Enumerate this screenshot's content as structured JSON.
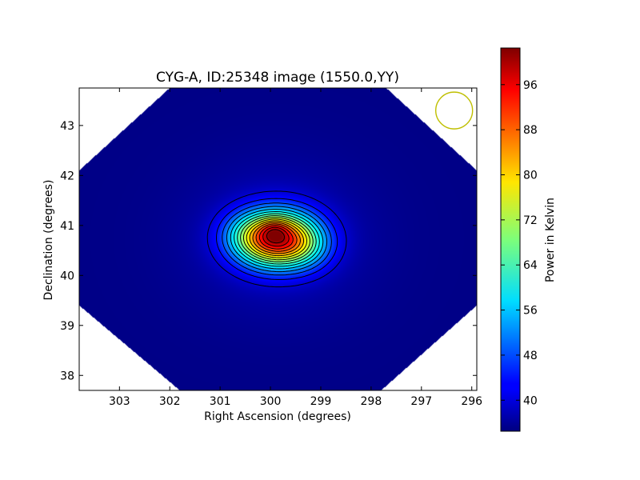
{
  "chart_data": {
    "type": "heatmap",
    "title": "CYG-A, ID:25348 image (1550.0,YY)",
    "xlabel": "Right Ascension (degrees)",
    "ylabel": "Declination (degrees)",
    "xlim": [
      303.8,
      295.9
    ],
    "ylim": [
      37.7,
      43.75
    ],
    "xticks": [
      303,
      302,
      301,
      300,
      299,
      298,
      297,
      296
    ],
    "yticks": [
      38,
      39,
      40,
      41,
      42,
      43
    ],
    "grid": false,
    "source": {
      "ra": 299.87,
      "dec": 40.73
    },
    "contours": {
      "levels": [
        40,
        44,
        48,
        52,
        56,
        60,
        64,
        68,
        72,
        76,
        80,
        84,
        88,
        92,
        96,
        100
      ],
      "color": "#000000"
    },
    "beam_marker": {
      "ra": 296.35,
      "dec": 43.3,
      "color": "#bfbf00"
    },
    "colorbar": {
      "label": "Power in Kelvin",
      "min": 34.5,
      "max": 102.5,
      "ticks": [
        40,
        48,
        56,
        64,
        72,
        80,
        88,
        96
      ],
      "colormap": "jet",
      "placement": "right"
    },
    "footprint": {
      "shape": "octagon",
      "vertices": [
        [
          302.0,
          43.75
        ],
        [
          297.7,
          43.75
        ],
        [
          295.9,
          42.1
        ],
        [
          295.9,
          39.4
        ],
        [
          297.8,
          37.7
        ],
        [
          301.8,
          37.7
        ],
        [
          303.8,
          39.4
        ],
        [
          303.8,
          42.1
        ]
      ]
    }
  }
}
